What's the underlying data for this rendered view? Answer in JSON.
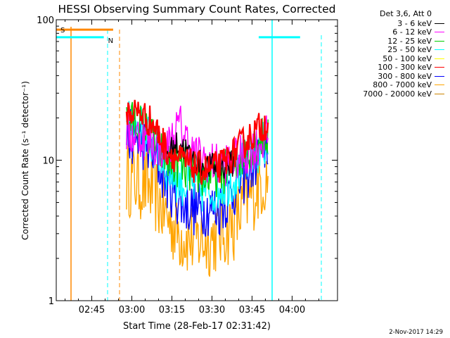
{
  "chart_data": {
    "type": "line",
    "title": "HESSI Observing Summary Count Rates, Corrected",
    "xlabel": "Start Time (28-Feb-17 02:31:42)",
    "ylabel": "Corrected Count Rate (s⁻¹ detector⁻¹)",
    "yscale": "log",
    "ylim": [
      1,
      100
    ],
    "xlim": [
      "02:31:42",
      "04:17:00"
    ],
    "x_ticks": [
      "02:45",
      "03:00",
      "03:15",
      "03:30",
      "03:45",
      "04:00"
    ],
    "y_ticks": [
      "1",
      "10",
      "100"
    ],
    "grid": false,
    "legend_title": "Det 3,6, Att 0",
    "legend_position": "right",
    "x": [
      "02:58",
      "03:03",
      "03:08",
      "03:13",
      "03:18",
      "03:23",
      "03:28",
      "03:33",
      "03:38",
      "03:43",
      "03:48",
      "03:51"
    ],
    "series": [
      {
        "name": "3 - 6 keV",
        "color": "#000000",
        "values": [
          null,
          null,
          null,
          11,
          13.5,
          10,
          9,
          9,
          9.5,
          null,
          null,
          null
        ]
      },
      {
        "name": "6 - 12 keV",
        "color": "#ff00ff",
        "values": [
          15,
          15,
          13,
          12,
          18,
          11,
          10,
          9,
          10,
          11,
          13,
          15
        ]
      },
      {
        "name": "12 - 25 keV",
        "color": "#00cc00",
        "values": [
          19,
          18,
          14,
          10,
          9,
          8,
          7.5,
          8,
          9,
          12,
          14,
          15
        ]
      },
      {
        "name": "25 - 50 keV",
        "color": "#00ffff",
        "values": [
          18,
          17,
          13,
          9,
          7,
          6.5,
          6,
          6.5,
          7.5,
          10,
          12,
          14
        ]
      },
      {
        "name": "50 - 100 keV",
        "color": "#ffff00",
        "values": [
          null,
          null,
          null,
          null,
          null,
          null,
          null,
          null,
          null,
          null,
          null,
          null
        ]
      },
      {
        "name": "100 - 300 keV",
        "color": "#ff0000",
        "values": [
          22,
          22,
          18,
          12,
          10,
          9,
          8.5,
          9,
          11,
          14,
          17,
          19
        ]
      },
      {
        "name": "300 - 800 keV",
        "color": "#0000ff",
        "values": [
          15,
          14,
          11,
          7,
          5,
          4.5,
          4.5,
          4.5,
          6,
          8,
          11,
          13
        ]
      },
      {
        "name": "800 - 7000 keV",
        "color": "#ffa500",
        "values": [
          7.5,
          7,
          6,
          4,
          3,
          2.7,
          2.7,
          3,
          3.5,
          5,
          7,
          7.5
        ]
      },
      {
        "name": "7000 - 20000 keV",
        "color": "#cc8400",
        "values": [
          null,
          null,
          null,
          null,
          null,
          null,
          null,
          null,
          null,
          null,
          null,
          null
        ]
      }
    ],
    "annotations": [
      {
        "label": "S",
        "color": "#ff8800",
        "x_start": "02:31:42",
        "x_end": "02:53:00",
        "y": 85,
        "style": "bar"
      },
      {
        "label": "N",
        "color": "#00ffff",
        "x_start": "02:31:42",
        "x_end": "02:49:30",
        "y": 75,
        "style": "bar"
      },
      {
        "label": "",
        "color": "#00ffff",
        "x_start": "03:47:30",
        "x_end": "04:03:00",
        "y": 75,
        "style": "bar"
      }
    ]
  },
  "timestamp": "2-Nov-2017 14:29"
}
